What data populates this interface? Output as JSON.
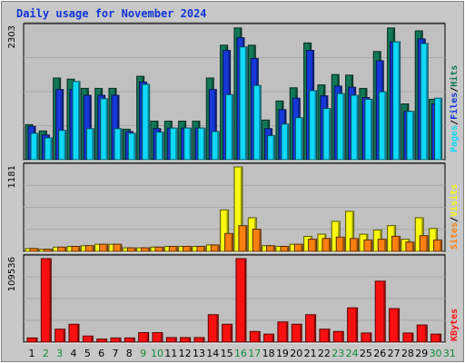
{
  "chart_data": {
    "type": "bar",
    "title": "Daily usage for November 2024",
    "days": [
      "1",
      "2",
      "3",
      "4",
      "5",
      "6",
      "7",
      "8",
      "9",
      "10",
      "11",
      "12",
      "13",
      "14",
      "15",
      "16",
      "17",
      "18",
      "19",
      "20",
      "21",
      "22",
      "23",
      "24",
      "25",
      "26",
      "27",
      "28",
      "29",
      "30",
      "31"
    ],
    "weekend_days": [
      "2",
      "3",
      "9",
      "10",
      "16",
      "17",
      "23",
      "24",
      "30",
      "31"
    ],
    "panels": [
      {
        "id": "hits-panel",
        "max_label": "2303",
        "ymax": 2303,
        "series": [
          {
            "name": "Hits",
            "color": "#137857",
            "values": [
              610,
              500,
              1420,
              1400,
              1240,
              1240,
              1240,
              530,
              1450,
              670,
              670,
              670,
              670,
              1420,
              1990,
              2290,
              1990,
              690,
              1020,
              1250,
              2030,
              1300,
              1480,
              1470,
              1240,
              1880,
              2290,
              970,
              2240,
              1050,
              0
            ]
          },
          {
            "name": "Files",
            "color": "#1638d8",
            "values": [
              580,
              430,
              1220,
              1220,
              1120,
              1120,
              1120,
              490,
              1350,
              540,
              550,
              550,
              550,
              1220,
              1900,
              2120,
              1760,
              540,
              870,
              1070,
              1900,
              1110,
              1280,
              1260,
              1080,
              1720,
              2050,
              840,
              2100,
              970,
              0
            ]
          },
          {
            "name": "Pages",
            "color": "#10d8f8",
            "values": [
              460,
              380,
              510,
              1360,
              540,
              1060,
              540,
              460,
              1310,
              480,
              550,
              550,
              550,
              490,
              1130,
              1960,
              1290,
              420,
              620,
              730,
              1200,
              890,
              1150,
              1120,
              1050,
              1180,
              2050,
              840,
              2020,
              1070,
              0
            ]
          }
        ]
      },
      {
        "id": "visits-panel",
        "max_label": "1181",
        "ymax": 1181,
        "series": [
          {
            "name": "Visits",
            "color": "#f8f810",
            "values": [
              40,
              30,
              60,
              70,
              80,
              100,
              100,
              50,
              50,
              60,
              70,
              70,
              70,
              90,
              580,
              1181,
              470,
              80,
              70,
              100,
              210,
              240,
              420,
              560,
              240,
              300,
              360,
              170,
              470,
              320,
              0
            ]
          },
          {
            "name": "Sites",
            "color": "#f88010",
            "values": [
              40,
              30,
              60,
              70,
              80,
              100,
              100,
              50,
              50,
              60,
              70,
              70,
              70,
              90,
              250,
              360,
              310,
              80,
              70,
              100,
              170,
              180,
              200,
              180,
              160,
              170,
              210,
              130,
              220,
              160,
              0
            ]
          }
        ]
      },
      {
        "id": "kbytes-panel",
        "max_label": "109536",
        "ymax": 109536,
        "series": [
          {
            "name": "KBytes",
            "color": "#f81010",
            "values": [
              5500,
              109500,
              17000,
              23500,
              8000,
              4000,
              5500,
              5500,
              12500,
              12500,
              6000,
              6000,
              6000,
              36000,
              23500,
              109536,
              14000,
              10500,
              26500,
              23500,
              36000,
              17000,
              14000,
              45000,
              12000,
              80000,
              44000,
              12000,
              22500,
              10500,
              0
            ]
          }
        ]
      }
    ],
    "right_labels": {
      "hits_panel": [
        "Pages",
        "/",
        "Files",
        "/",
        "Hits"
      ],
      "visits_panel": [
        "Sites",
        "/",
        "Visits"
      ],
      "kbytes_panel": [
        "KBytes"
      ]
    },
    "colors": {
      "background": "#c8c8c8",
      "plot_background": "#c0c0c0",
      "grid": "#a8a8a8",
      "weekday_label": "#000000",
      "weekend_label": "#0f8a3a",
      "title": "#1034d8",
      "separator": "#ffffff"
    }
  }
}
